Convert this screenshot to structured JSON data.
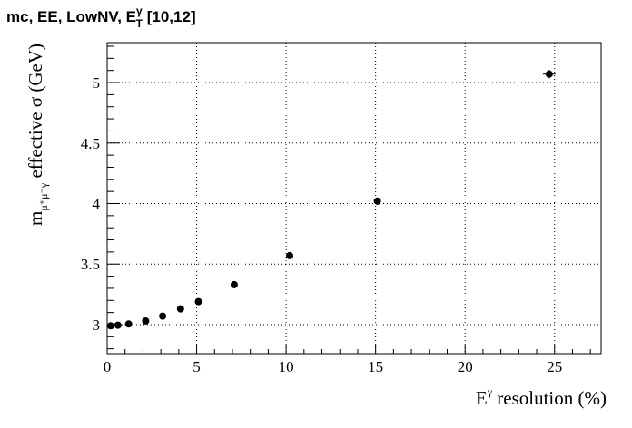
{
  "chart_data": {
    "type": "scatter",
    "title": {
      "prefix": "mc, EE, LowNV, E",
      "sup": "γ",
      "sub": "T",
      "suffix": " [10,12]"
    },
    "xlabel": {
      "base": "E",
      "sup": "γ",
      "rest": " resolution (%)"
    },
    "ylabel": {
      "base": "m",
      "sub": "μ⁺μ⁻γ",
      "rest": " effective σ (GeV)"
    },
    "xlim": [
      0,
      27.6
    ],
    "ylim": [
      2.76,
      5.33
    ],
    "xticks": [
      0,
      5,
      10,
      15,
      20,
      25
    ],
    "xtick_labels": [
      "0",
      "5",
      "10",
      "15",
      "20",
      "25"
    ],
    "yticks": [
      3,
      3.5,
      4,
      4.5,
      5
    ],
    "ytick_labels": [
      "3",
      "3.5",
      "4",
      "4.5",
      "5"
    ],
    "grid": true,
    "points": [
      {
        "x": 0.2,
        "y": 2.99,
        "xerr": 0,
        "yerr": 0.02
      },
      {
        "x": 0.6,
        "y": 2.995,
        "xerr": 0,
        "yerr": 0.02
      },
      {
        "x": 1.2,
        "y": 3.005,
        "xerr": 0,
        "yerr": 0.02
      },
      {
        "x": 2.15,
        "y": 3.03,
        "xerr": 0,
        "yerr": 0.02
      },
      {
        "x": 3.1,
        "y": 3.07,
        "xerr": 0,
        "yerr": 0.02
      },
      {
        "x": 4.1,
        "y": 3.13,
        "xerr": 0,
        "yerr": 0.02
      },
      {
        "x": 5.1,
        "y": 3.19,
        "xerr": 0,
        "yerr": 0.025
      },
      {
        "x": 7.1,
        "y": 3.33,
        "xerr": 0,
        "yerr": 0.025
      },
      {
        "x": 10.2,
        "y": 3.57,
        "xerr": 0,
        "yerr": 0.03
      },
      {
        "x": 15.1,
        "y": 4.02,
        "xerr": 0,
        "yerr": 0.03
      },
      {
        "x": 24.7,
        "y": 5.07,
        "xerr": 0.35,
        "yerr": 0.035
      }
    ]
  }
}
